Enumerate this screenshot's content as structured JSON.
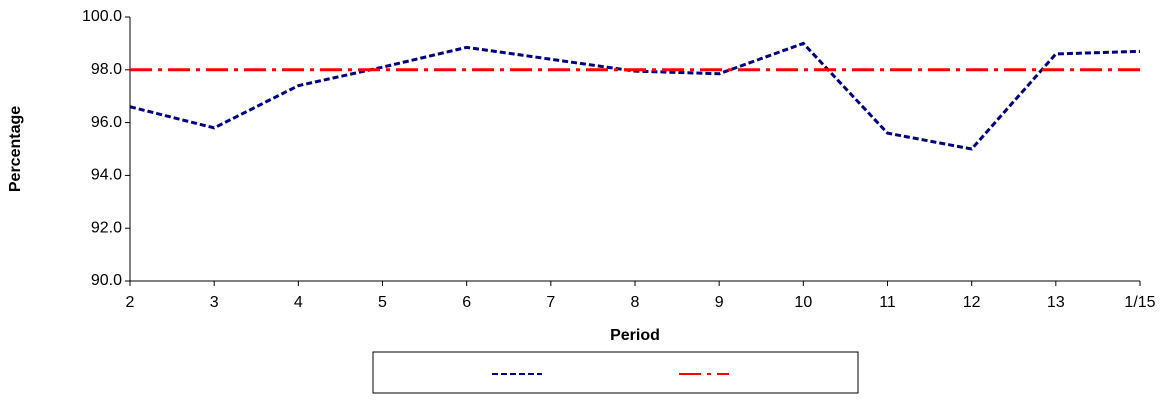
{
  "chart_data": {
    "type": "line",
    "x_label": "Period",
    "y_label": "Percentage",
    "categories": [
      "2",
      "3",
      "4",
      "5",
      "6",
      "7",
      "8",
      "9",
      "10",
      "11",
      "12",
      "13",
      "1/15"
    ],
    "series": [
      {
        "color": "#000080",
        "style": "dashed",
        "values": [
          96.6,
          95.8,
          97.4,
          98.1,
          98.85,
          98.4,
          97.95,
          97.85,
          99.0,
          95.6,
          95.0,
          98.6,
          98.7
        ]
      },
      {
        "color": "#ff0000",
        "style": "dashdot",
        "values": [
          98,
          98,
          98,
          98,
          98,
          98,
          98,
          98,
          98,
          98,
          98,
          98,
          98
        ]
      }
    ],
    "ylim": [
      90,
      100
    ],
    "yticks": [
      {
        "value": 90,
        "label": "90.0"
      },
      {
        "value": 92,
        "label": "92.0"
      },
      {
        "value": 94,
        "label": "94.0"
      },
      {
        "value": 96,
        "label": "96.0"
      },
      {
        "value": 98,
        "label": "98.0"
      },
      {
        "value": 100,
        "label": "100.0"
      }
    ],
    "grid": false,
    "legend": "bottom"
  }
}
